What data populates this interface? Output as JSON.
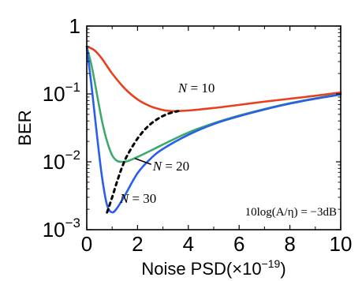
{
  "chart_data": {
    "type": "line",
    "xlabel": "Noise PSD(×10",
    "xlabel_exponent": "−19",
    "xlabel_close": ")",
    "ylabel": "BER",
    "xlim": [
      0,
      10
    ],
    "ylim": [
      0.001,
      1
    ],
    "yscale": "log",
    "x_ticks": [
      "0",
      "2",
      "4",
      "6",
      "8",
      "10"
    ],
    "y_ticks": [
      {
        "value": 1,
        "base": "1",
        "exp": ""
      },
      {
        "value": 0.1,
        "base": "10",
        "exp": "−1"
      },
      {
        "value": 0.01,
        "base": "10",
        "exp": "−2"
      },
      {
        "value": 0.001,
        "base": "10",
        "exp": "−3"
      }
    ],
    "grid": false,
    "annotation": "10log(A/η) = −3dB",
    "series": [
      {
        "name": "N = 10",
        "color": "#e8401c",
        "x": [
          0,
          0.3,
          0.6,
          1.0,
          1.5,
          2.0,
          2.5,
          3.0,
          3.3,
          3.6,
          4.0,
          5.0,
          6.0,
          7.0,
          8.0,
          9.0,
          10.0
        ],
        "y": [
          0.5,
          0.44,
          0.33,
          0.2,
          0.12,
          0.083,
          0.066,
          0.058,
          0.056,
          0.056,
          0.057,
          0.062,
          0.069,
          0.077,
          0.085,
          0.094,
          0.105
        ]
      },
      {
        "name": "N = 20",
        "color": "#3caa6c",
        "x": [
          0,
          0.2,
          0.4,
          0.6,
          0.8,
          1.0,
          1.2,
          1.4,
          1.6,
          2.0,
          2.5,
          3.0,
          4.0,
          5.0,
          6.0,
          7.0,
          8.0,
          9.0,
          10.0
        ],
        "y": [
          0.5,
          0.25,
          0.1,
          0.04,
          0.02,
          0.0125,
          0.0103,
          0.01,
          0.0102,
          0.0118,
          0.0145,
          0.018,
          0.027,
          0.037,
          0.048,
          0.06,
          0.073,
          0.086,
          0.1
        ]
      },
      {
        "name": "N = 30",
        "color": "#2a5ee8",
        "x": [
          0,
          0.2,
          0.4,
          0.6,
          0.8,
          1.0,
          1.2,
          1.5,
          2.0,
          2.5,
          3.0,
          4.0,
          5.0,
          6.0,
          7.0,
          8.0,
          9.0,
          10.0
        ],
        "y": [
          0.5,
          0.12,
          0.025,
          0.006,
          0.0023,
          0.0018,
          0.0021,
          0.0032,
          0.0068,
          0.011,
          0.0155,
          0.025,
          0.036,
          0.047,
          0.059,
          0.072,
          0.085,
          0.098
        ]
      },
      {
        "name": "",
        "color": "#000000",
        "dashed": true,
        "x": [
          0.8,
          1.0,
          1.2,
          1.4,
          1.6,
          2.0,
          2.4,
          2.8,
          3.2,
          3.6
        ],
        "y": [
          0.0018,
          0.003,
          0.0052,
          0.0085,
          0.0125,
          0.022,
          0.033,
          0.043,
          0.051,
          0.056
        ]
      }
    ],
    "labels": [
      {
        "series": 0,
        "italic": "N",
        "rest": " = 10",
        "at": [
          3.6,
          0.105
        ],
        "leader_to": null
      },
      {
        "series": 1,
        "italic": "N",
        "rest": " = 20",
        "at": [
          2.6,
          0.0074
        ],
        "leader_to": [
          1.9,
          0.0112
        ]
      },
      {
        "series": 2,
        "italic": "N",
        "rest": " = 30",
        "at": [
          1.3,
          0.0025
        ],
        "leader_to": null
      }
    ]
  }
}
